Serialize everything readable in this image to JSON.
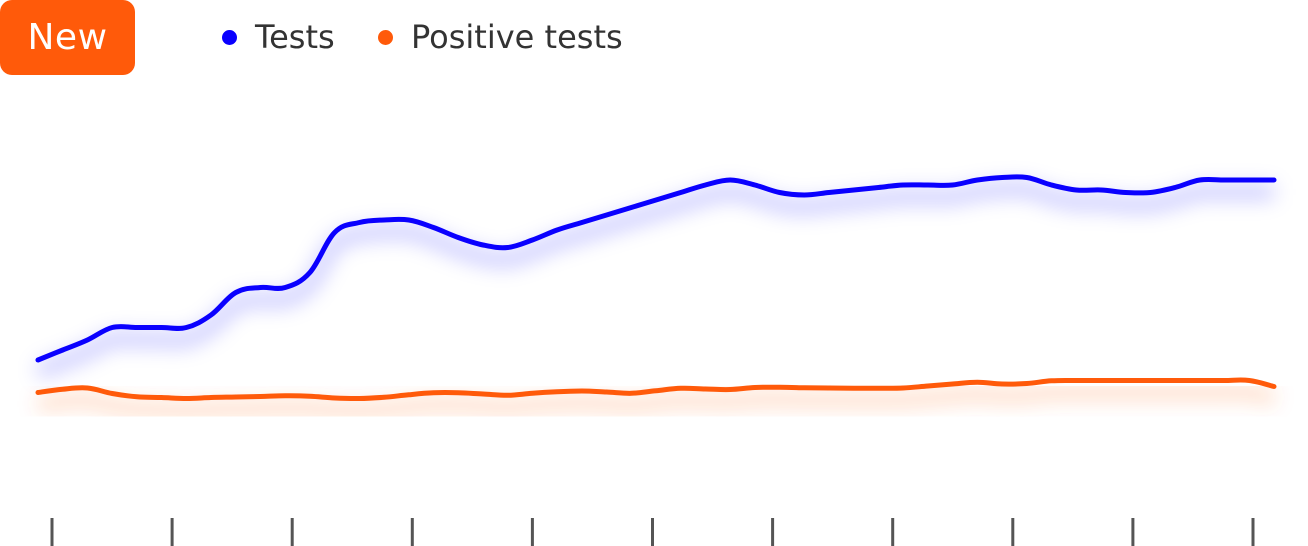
{
  "badge": {
    "label": "New",
    "color": "#FF5A0A"
  },
  "chart_data": {
    "type": "line",
    "title": "",
    "xlabel": "",
    "ylabel": "",
    "grid": false,
    "legend_position": "top",
    "x_tick_count": 11,
    "x_tick_labels": [],
    "ylim": [
      0,
      100
    ],
    "x": [
      0,
      1,
      2,
      3,
      4,
      5,
      6,
      7,
      8,
      9,
      10,
      11,
      12,
      13,
      14,
      15,
      16,
      17,
      18,
      19,
      20,
      21,
      22,
      23,
      24,
      25,
      26,
      27,
      28,
      29,
      30,
      31,
      32,
      33,
      34,
      35,
      36,
      37,
      38,
      39,
      40,
      41,
      42,
      43,
      44,
      45,
      46,
      47,
      48,
      49,
      50
    ],
    "series": [
      {
        "name": "Tests",
        "color": "#0A00FF",
        "values": [
          4,
          8,
          12,
          17,
          17,
          17,
          17,
          22,
          31,
          33,
          33,
          39,
          55,
          59,
          60,
          60,
          57,
          53,
          50,
          49,
          52,
          56,
          59,
          62,
          65,
          68,
          71,
          74,
          76,
          74,
          71,
          70,
          71,
          72,
          73,
          74,
          74,
          74,
          76,
          77,
          77,
          74,
          72,
          72,
          71,
          71,
          73,
          76,
          76,
          76,
          76
        ]
      },
      {
        "name": "Positive tests",
        "color": "#FF5A0A",
        "values": [
          -9,
          -7.7,
          -7.2,
          -9.4,
          -10.7,
          -11,
          -11.4,
          -11,
          -10.8,
          -10.6,
          -10.3,
          -10.5,
          -11.2,
          -11.4,
          -10.9,
          -9.9,
          -9.1,
          -9.1,
          -9.6,
          -10.1,
          -9.3,
          -8.7,
          -8.4,
          -8.8,
          -9.3,
          -8.3,
          -7.3,
          -7.6,
          -7.8,
          -7,
          -6.9,
          -7.1,
          -7.2,
          -7.3,
          -7.3,
          -7.2,
          -6.4,
          -5.6,
          -4.9,
          -5.6,
          -5.4,
          -4.3,
          -4.2,
          -4.2,
          -4.2,
          -4.2,
          -4.2,
          -4.2,
          -4.2,
          -4.2,
          -6.6
        ]
      }
    ]
  }
}
